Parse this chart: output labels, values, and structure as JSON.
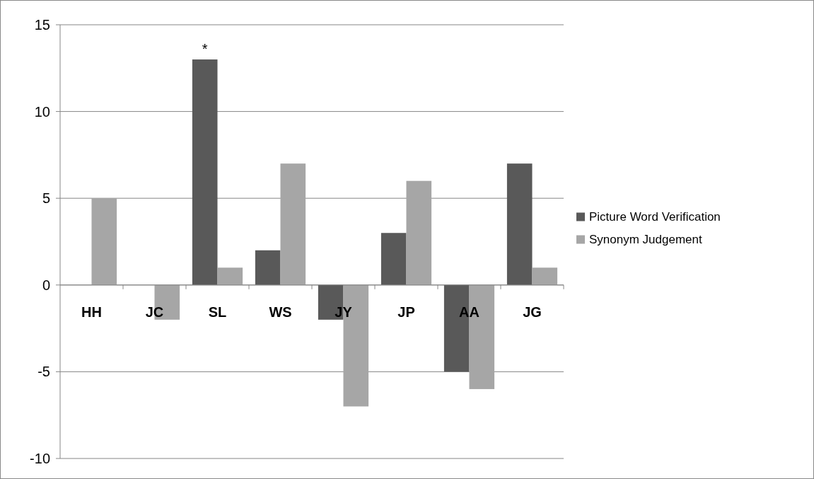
{
  "chart_data": {
    "type": "bar",
    "categories": [
      "HH",
      "JC",
      "SL",
      "WS",
      "JY",
      "JP",
      "AA",
      "JG"
    ],
    "series": [
      {
        "name": "Picture Word Verification",
        "color": "#595959",
        "values": [
          0,
          0,
          13,
          2,
          -2,
          3,
          -5,
          7
        ]
      },
      {
        "name": "Synonym Judgement",
        "color": "#a6a6a6",
        "values": [
          5,
          -2,
          1,
          7,
          -7,
          6,
          -6,
          1
        ]
      }
    ],
    "ylim": [
      -10,
      15
    ],
    "yticks": [
      -10,
      -5,
      0,
      5,
      10,
      15
    ],
    "grid": "y",
    "legend": "right",
    "annotations": [
      {
        "text": "*",
        "x": "SL",
        "y": 13
      }
    ]
  }
}
